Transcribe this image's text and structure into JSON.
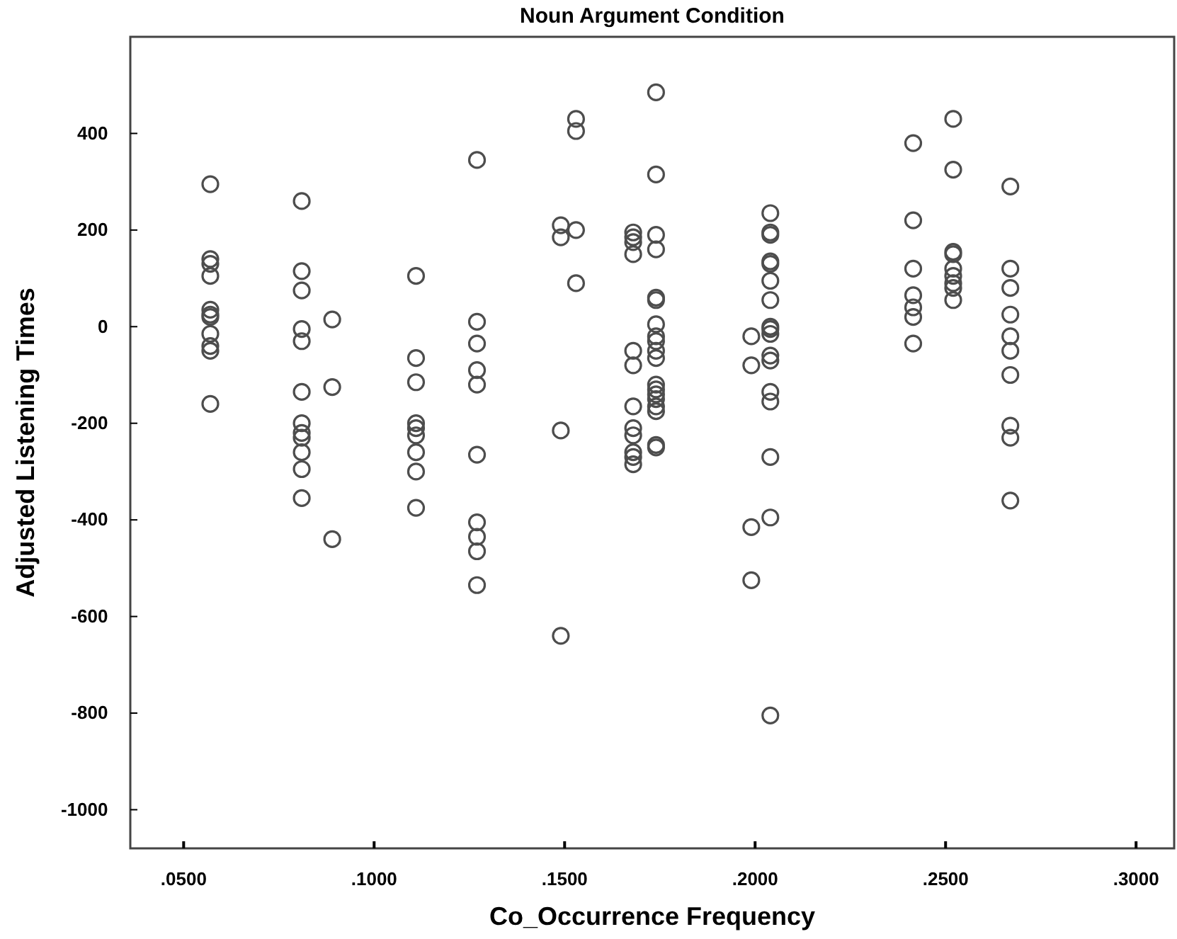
{
  "chart_data": {
    "type": "scatter",
    "title": "Noun Argument Condition",
    "xlabel": "Co_Occurrence Frequency",
    "ylabel": "Adjusted Listening Times",
    "xlim": [
      0.036,
      0.31
    ],
    "ylim": [
      -1080,
      600
    ],
    "xticks": [
      {
        "value": 0.05,
        "label": ".0500"
      },
      {
        "value": 0.1,
        "label": ".1000"
      },
      {
        "value": 0.15,
        "label": ".1500"
      },
      {
        "value": 0.2,
        "label": ".2000"
      },
      {
        "value": 0.25,
        "label": ".2500"
      },
      {
        "value": 0.3,
        "label": ".3000"
      }
    ],
    "yticks": [
      -1000,
      -800,
      -600,
      -400,
      -200,
      0,
      200,
      400
    ],
    "grid": false,
    "marker": "circle",
    "series": [
      {
        "color": "#4d4d4d",
        "x": [
          0.057,
          0.057,
          0.057,
          0.057,
          0.057,
          0.057,
          0.057,
          0.057,
          0.057,
          0.057,
          0.057,
          0.081,
          0.081,
          0.081,
          0.081,
          0.081,
          0.081,
          0.081,
          0.081,
          0.081,
          0.081,
          0.081,
          0.081,
          0.089,
          0.089,
          0.089,
          0.111,
          0.111,
          0.111,
          0.111,
          0.111,
          0.111,
          0.111,
          0.111,
          0.111,
          0.127,
          0.127,
          0.127,
          0.127,
          0.127,
          0.127,
          0.127,
          0.127,
          0.127,
          0.127,
          0.149,
          0.149,
          0.149,
          0.149,
          0.153,
          0.153,
          0.153,
          0.153,
          0.168,
          0.168,
          0.168,
          0.168,
          0.168,
          0.168,
          0.168,
          0.168,
          0.168,
          0.168,
          0.168,
          0.168,
          0.174,
          0.174,
          0.174,
          0.174,
          0.174,
          0.174,
          0.174,
          0.174,
          0.174,
          0.174,
          0.174,
          0.174,
          0.174,
          0.174,
          0.174,
          0.174,
          0.174,
          0.174,
          0.174,
          0.199,
          0.199,
          0.199,
          0.199,
          0.204,
          0.204,
          0.204,
          0.204,
          0.204,
          0.204,
          0.204,
          0.204,
          0.204,
          0.204,
          0.204,
          0.204,
          0.204,
          0.204,
          0.204,
          0.204,
          0.204,
          0.2415,
          0.2415,
          0.2415,
          0.2415,
          0.2415,
          0.2415,
          0.2415,
          0.252,
          0.252,
          0.252,
          0.252,
          0.252,
          0.252,
          0.252,
          0.252,
          0.252,
          0.267,
          0.267,
          0.267,
          0.267,
          0.267,
          0.267,
          0.267,
          0.267,
          0.267,
          0.267
        ],
        "values": [
          295,
          140,
          130,
          105,
          35,
          25,
          20,
          -15,
          -40,
          -50,
          -160,
          260,
          115,
          75,
          -5,
          -30,
          -135,
          -200,
          -220,
          -230,
          -260,
          -295,
          -355,
          15,
          -125,
          -440,
          105,
          -65,
          -115,
          -200,
          -210,
          -225,
          -260,
          -300,
          -375,
          345,
          10,
          -35,
          -90,
          -120,
          -265,
          -405,
          -435,
          -465,
          -535,
          210,
          185,
          -215,
          -640,
          430,
          405,
          200,
          90,
          195,
          185,
          175,
          150,
          -50,
          -80,
          -165,
          -210,
          -225,
          -260,
          -270,
          -285,
          485,
          315,
          190,
          160,
          60,
          55,
          5,
          -20,
          -30,
          -50,
          -65,
          -120,
          -130,
          -140,
          -150,
          -165,
          -175,
          -245,
          -250,
          -20,
          -80,
          -415,
          -525,
          235,
          195,
          190,
          135,
          130,
          95,
          55,
          0,
          -5,
          -15,
          -60,
          -70,
          -135,
          -155,
          -270,
          -395,
          -805,
          380,
          220,
          120,
          65,
          40,
          20,
          -35,
          430,
          325,
          155,
          150,
          120,
          105,
          90,
          80,
          55,
          290,
          120,
          80,
          25,
          -20,
          -50,
          -100,
          -205,
          -230,
          -360
        ]
      }
    ]
  }
}
